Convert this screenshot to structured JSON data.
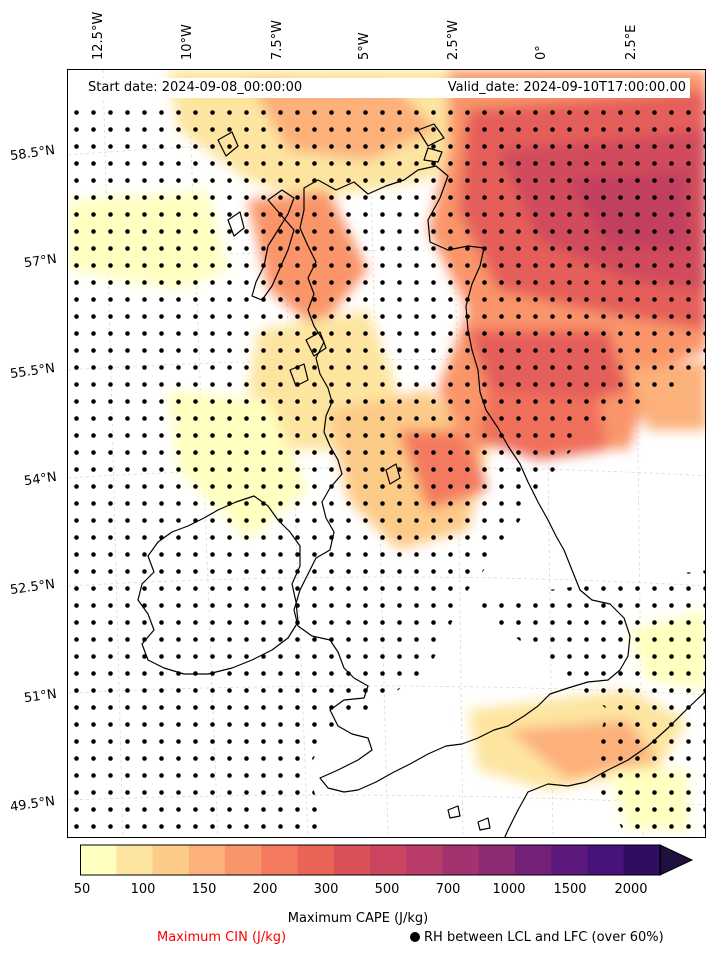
{
  "header": {
    "start_date": "Start date: 2024-09-08_00:00:00",
    "valid_date": "Valid_date: 2024-09-10T17:00:00.00"
  },
  "axes": {
    "lon_labels": [
      "12.5°W",
      "10°W",
      "7.5°W",
      "5°W",
      "2.5°W",
      "0°",
      "2.5°E"
    ],
    "lat_labels": [
      "58.5°N",
      "57°N",
      "55.5°N",
      "54°N",
      "52.5°N",
      "51°N",
      "49.5°N"
    ]
  },
  "colorbar": {
    "ticks": [
      "50",
      "100",
      "150",
      "200",
      "300",
      "500",
      "700",
      "1000",
      "1500",
      "2000"
    ],
    "colors": [
      "#ffffbf",
      "#fde5a0",
      "#fdcb88",
      "#fcb07a",
      "#fa956b",
      "#f47a5e",
      "#ea6357",
      "#dc5157",
      "#cc4560",
      "#b83b6a",
      "#a3336f",
      "#8c2a74",
      "#762178",
      "#5e197c",
      "#47127a",
      "#300d63",
      "#1f1040"
    ],
    "label": "Maximum CAPE (J/kg)",
    "extend": "max"
  },
  "legend": {
    "cin_label": "Maximum CIN (J/kg)",
    "cin_color": "#ff0000",
    "rh_label": "RH between LCL and LFC (over 60%)",
    "rh_marker": "black-dot"
  },
  "map": {
    "coastline_color": "#000000",
    "gridline_color": "#cccccc"
  }
}
